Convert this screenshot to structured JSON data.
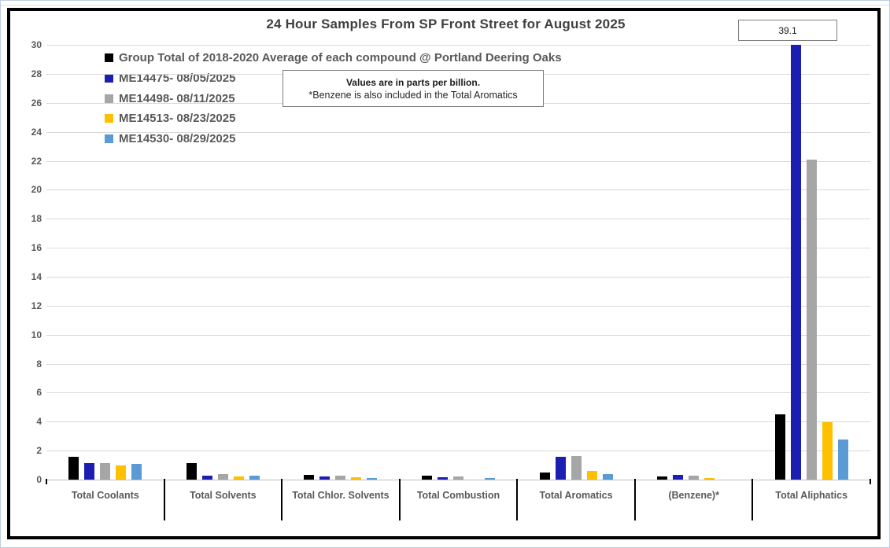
{
  "page": {
    "title": "24 Hour Samples From SP Front Street for August 2025",
    "max_value_label": "39.1",
    "note_line1": "Values are in parts per billion.",
    "note_line2": "*Benzene is also included in the Total Aromatics"
  },
  "chart_data": {
    "type": "bar",
    "title": "24 Hour Samples From SP Front Street for August 2025",
    "units": "parts per billion",
    "categories": [
      "Total Coolants",
      "Total Solvents",
      "Total Chlor. Solvents",
      "Total Combustion",
      "Total Aromatics",
      "(Benzene)*",
      "Total Aliphatics"
    ],
    "series": [
      {
        "name": "Group Total of 2018-2020 Average of each compound @ Portland Deering Oaks",
        "color": "#000000",
        "values": [
          1.55,
          1.15,
          0.35,
          0.25,
          0.5,
          0.2,
          4.5
        ]
      },
      {
        "name": "ME14475- 08/05/2025",
        "color": "#1c1eb2",
        "values": [
          1.15,
          0.3,
          0.2,
          0.15,
          1.6,
          0.35,
          39.1
        ]
      },
      {
        "name": "ME14498- 08/11/2025",
        "color": "#a6a6a6",
        "values": [
          1.15,
          0.4,
          0.25,
          0.2,
          1.65,
          0.25,
          22.1
        ]
      },
      {
        "name": "ME14513- 08/23/2025",
        "color": "#ffc000",
        "values": [
          1.0,
          0.2,
          0.15,
          0,
          0.6,
          0.1,
          3.95
        ]
      },
      {
        "name": "ME14530- 08/29/2025",
        "color": "#5b9bd5",
        "values": [
          1.1,
          0.25,
          0.1,
          0.1,
          0.4,
          0,
          2.75
        ]
      }
    ],
    "xlabel": "",
    "ylabel": "",
    "ylim": [
      0,
      30
    ],
    "yticks": [
      0,
      2,
      4,
      6,
      8,
      10,
      12,
      14,
      16,
      18,
      20,
      22,
      24,
      26,
      28,
      30
    ],
    "grid": true,
    "legend_position": "top-left",
    "clipped_bar_note": {
      "series": "ME14475- 08/05/2025",
      "category": "Total Aliphatics",
      "actual_value": 39.1,
      "label_shown_in_box": "39.1"
    }
  }
}
